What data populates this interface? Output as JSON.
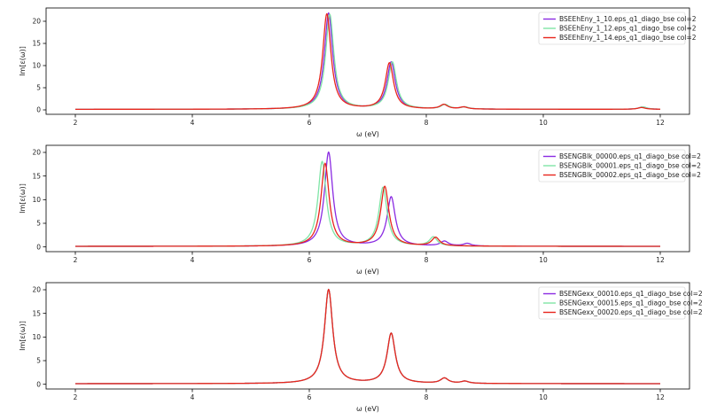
{
  "chart_data": [
    {
      "type": "line",
      "xlabel": "ω (eV)",
      "ylabel": "Im[ε(ω)]",
      "xlim": [
        1.5,
        12.5
      ],
      "ylim": [
        -1.0,
        23.0
      ],
      "xticks": [
        2,
        4,
        6,
        8,
        10,
        12
      ],
      "yticks": [
        0,
        5,
        10,
        15,
        20
      ],
      "grid": false,
      "legend_position": "top-right",
      "series": [
        {
          "name": "BSEEhEny_1_10.eps_q1_diago_bse col=2",
          "color": "#8a2be2",
          "peaks": [
            [
              6.33,
              21.7,
              0.085
            ],
            [
              7.4,
              10.6,
              0.085
            ],
            [
              8.31,
              1.0,
              0.08
            ],
            [
              8.65,
              0.45,
              0.08
            ],
            [
              11.7,
              0.55,
              0.08
            ]
          ]
        },
        {
          "name": "BSEEhEny_1_12.eps_q1_diago_bse col=2",
          "color": "#7fe5a6",
          "peaks": [
            [
              6.35,
              21.4,
              0.085
            ],
            [
              7.42,
              10.6,
              0.085
            ],
            [
              8.32,
              1.0,
              0.08
            ],
            [
              8.66,
              0.45,
              0.08
            ],
            [
              11.7,
              0.55,
              0.08
            ]
          ]
        },
        {
          "name": "BSEEhEny_1_14.eps_q1_diago_bse col=2",
          "color": "#e8251c",
          "peaks": [
            [
              6.3,
              21.5,
              0.085
            ],
            [
              7.37,
              10.4,
              0.085
            ],
            [
              8.3,
              1.0,
              0.08
            ],
            [
              8.64,
              0.45,
              0.08
            ],
            [
              11.68,
              0.4,
              0.08
            ]
          ]
        }
      ]
    },
    {
      "type": "line",
      "xlabel": "ω (eV)",
      "ylabel": "Im[ε(ω)]",
      "xlim": [
        1.5,
        12.5
      ],
      "ylim": [
        -1.0,
        21.5
      ],
      "xticks": [
        2,
        4,
        6,
        8,
        10,
        12
      ],
      "yticks": [
        0,
        5,
        10,
        15,
        20
      ],
      "grid": false,
      "legend_position": "top-right",
      "series": [
        {
          "name": "BSENGBlk_00000.eps_q1_diago_bse col=2",
          "color": "#8a2be2",
          "peaks": [
            [
              6.33,
              19.9,
              0.085
            ],
            [
              7.4,
              10.4,
              0.085
            ],
            [
              8.31,
              1.0,
              0.08
            ],
            [
              8.7,
              0.55,
              0.08
            ]
          ]
        },
        {
          "name": "BSENGBlk_00001.eps_q1_diago_bse col=2",
          "color": "#7fe5a6",
          "peaks": [
            [
              6.22,
              17.9,
              0.085
            ],
            [
              7.26,
              12.4,
              0.085
            ],
            [
              8.12,
              1.9,
              0.08
            ]
          ]
        },
        {
          "name": "BSENGBlk_00002.eps_q1_diago_bse col=2",
          "color": "#e8251c",
          "peaks": [
            [
              6.27,
              17.5,
              0.085
            ],
            [
              7.29,
              12.6,
              0.085
            ],
            [
              8.16,
              1.8,
              0.08
            ]
          ]
        }
      ]
    },
    {
      "type": "line",
      "xlabel": "ω (eV)",
      "ylabel": "Im[ε(ω)]",
      "xlim": [
        1.5,
        12.5
      ],
      "ylim": [
        -1.0,
        21.5
      ],
      "xticks": [
        2,
        4,
        6,
        8,
        10,
        12
      ],
      "yticks": [
        0,
        5,
        10,
        15,
        20
      ],
      "grid": false,
      "legend_position": "top-right",
      "series": [
        {
          "name": "BSENGexx_00010.eps_q1_diago_bse col=2",
          "color": "#8a2be2",
          "peaks": [
            [
              6.33,
              19.9,
              0.085
            ],
            [
              7.4,
              10.6,
              0.085
            ],
            [
              8.31,
              1.1,
              0.08
            ],
            [
              8.66,
              0.45,
              0.08
            ]
          ]
        },
        {
          "name": "BSENGexx_00015.eps_q1_diago_bse col=2",
          "color": "#7fe5a6",
          "peaks": [
            [
              6.33,
              19.9,
              0.085
            ],
            [
              7.4,
              10.6,
              0.085
            ],
            [
              8.31,
              1.1,
              0.08
            ],
            [
              8.66,
              0.45,
              0.08
            ]
          ]
        },
        {
          "name": "BSENGexx_00020.eps_q1_diago_bse col=2",
          "color": "#e8251c",
          "peaks": [
            [
              6.33,
              19.9,
              0.085
            ],
            [
              7.4,
              10.6,
              0.085
            ],
            [
              8.31,
              1.1,
              0.08
            ],
            [
              8.66,
              0.45,
              0.08
            ]
          ]
        }
      ]
    }
  ]
}
